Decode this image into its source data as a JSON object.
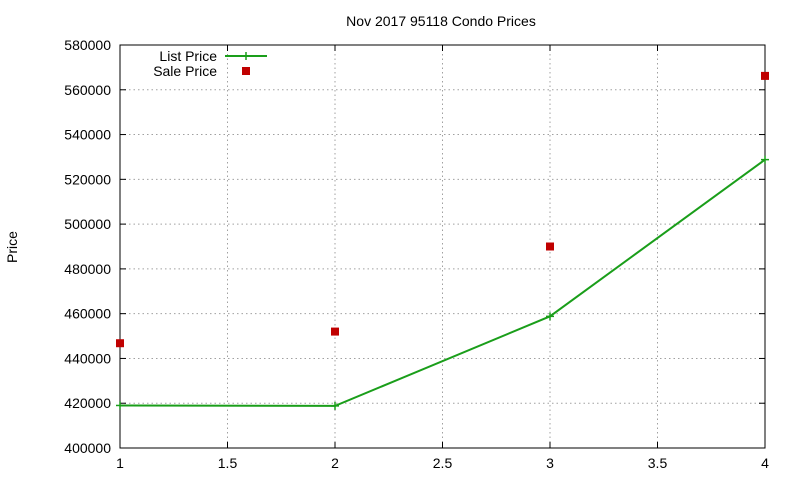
{
  "chart_data": {
    "type": "line",
    "title": "Nov 2017 95118 Condo Prices",
    "xlabel": "",
    "ylabel": "Price",
    "xlim": [
      1,
      4
    ],
    "ylim": [
      400000,
      580000
    ],
    "x_ticks": [
      "1",
      "1.5",
      "2",
      "2.5",
      "3",
      "3.5",
      "4"
    ],
    "y_ticks": [
      "400000",
      "420000",
      "440000",
      "460000",
      "480000",
      "500000",
      "520000",
      "540000",
      "560000",
      "580000"
    ],
    "grid": true,
    "legend_position": "top-left",
    "series": [
      {
        "name": "List Price",
        "style": "line-with-plus-markers",
        "color": "#1a9e1a",
        "x": [
          1,
          2,
          3,
          4
        ],
        "y": [
          419000,
          418800,
          458800,
          528800
        ]
      },
      {
        "name": "Sale Price",
        "style": "square-markers",
        "color": "#c00000",
        "x": [
          1,
          2,
          3,
          4
        ],
        "y": [
          446800,
          452000,
          490000,
          566200
        ]
      }
    ]
  }
}
